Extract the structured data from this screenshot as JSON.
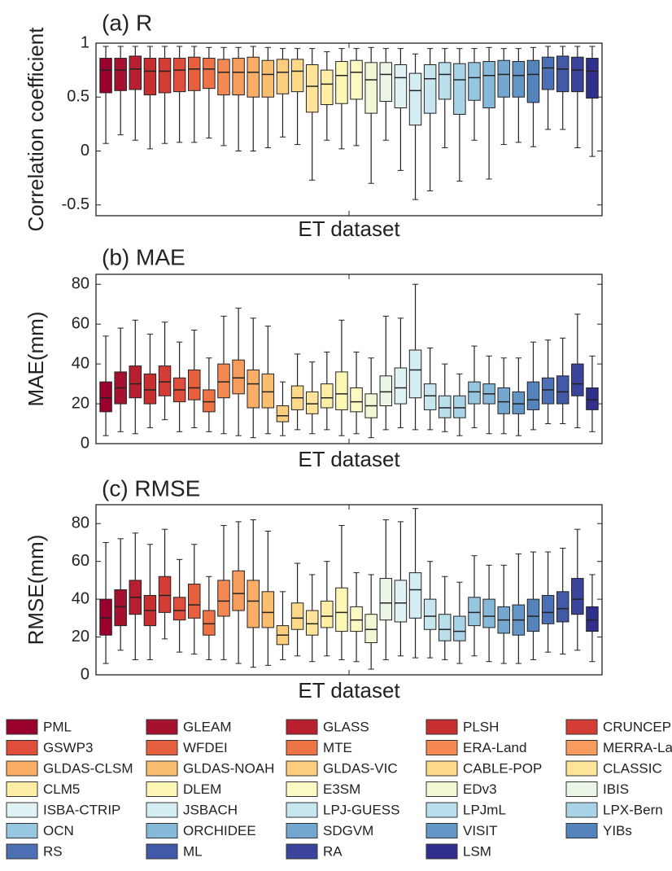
{
  "chart_data": [
    {
      "type": "box",
      "title": "(a) R",
      "y_label": "Correlation coefficient",
      "x_label": "ET dataset",
      "ylim": [
        -0.6,
        1
      ],
      "yticks": [
        -0.5,
        0,
        0.5,
        1
      ],
      "boxes": [
        [
          0.07,
          0.54,
          0.75,
          0.86,
          0.97
        ],
        [
          0.15,
          0.56,
          0.75,
          0.86,
          0.97
        ],
        [
          0.1,
          0.57,
          0.76,
          0.88,
          0.97
        ],
        [
          0.02,
          0.52,
          0.74,
          0.86,
          0.97
        ],
        [
          0.07,
          0.54,
          0.74,
          0.86,
          0.97
        ],
        [
          0.08,
          0.55,
          0.75,
          0.86,
          0.97
        ],
        [
          0.08,
          0.56,
          0.76,
          0.87,
          0.97
        ],
        [
          0.12,
          0.58,
          0.76,
          0.86,
          0.96
        ],
        [
          0.05,
          0.52,
          0.73,
          0.85,
          0.96
        ],
        [
          0.0,
          0.52,
          0.73,
          0.86,
          0.96
        ],
        [
          0.0,
          0.5,
          0.73,
          0.87,
          0.97
        ],
        [
          0.03,
          0.5,
          0.71,
          0.84,
          0.96
        ],
        [
          0.13,
          0.53,
          0.73,
          0.85,
          0.95
        ],
        [
          0.06,
          0.55,
          0.74,
          0.85,
          0.95
        ],
        [
          -0.27,
          0.36,
          0.6,
          0.8,
          0.95
        ],
        [
          0.1,
          0.43,
          0.62,
          0.75,
          0.92
        ],
        [
          0.02,
          0.44,
          0.7,
          0.83,
          0.95
        ],
        [
          0.05,
          0.48,
          0.73,
          0.84,
          0.95
        ],
        [
          -0.3,
          0.35,
          0.66,
          0.82,
          0.96
        ],
        [
          0.1,
          0.46,
          0.71,
          0.82,
          0.95
        ],
        [
          -0.18,
          0.4,
          0.68,
          0.8,
          0.95
        ],
        [
          -0.45,
          0.24,
          0.56,
          0.72,
          0.9
        ],
        [
          -0.37,
          0.35,
          0.67,
          0.8,
          0.95
        ],
        [
          0.03,
          0.48,
          0.71,
          0.82,
          0.95
        ],
        [
          -0.28,
          0.34,
          0.66,
          0.81,
          0.95
        ],
        [
          0.1,
          0.47,
          0.68,
          0.82,
          0.95
        ],
        [
          -0.26,
          0.4,
          0.7,
          0.83,
          0.96
        ],
        [
          0.06,
          0.5,
          0.71,
          0.84,
          0.95
        ],
        [
          0.08,
          0.5,
          0.7,
          0.83,
          0.95
        ],
        [
          0.04,
          0.45,
          0.71,
          0.84,
          0.96
        ],
        [
          0.2,
          0.57,
          0.77,
          0.87,
          0.97
        ],
        [
          0.2,
          0.55,
          0.76,
          0.88,
          0.97
        ],
        [
          0.03,
          0.55,
          0.75,
          0.87,
          0.97
        ],
        [
          -0.05,
          0.49,
          0.74,
          0.86,
          0.97
        ]
      ]
    },
    {
      "type": "box",
      "title": "(b) MAE",
      "y_label": "MAE(mm)",
      "x_label": "ET dataset",
      "ylim": [
        0,
        85
      ],
      "yticks": [
        0,
        20,
        40,
        60,
        80
      ],
      "boxes": [
        [
          4,
          16,
          23,
          31,
          54
        ],
        [
          6,
          20,
          28,
          36,
          58
        ],
        [
          5,
          23,
          30,
          39,
          62
        ],
        [
          8,
          20,
          27,
          35,
          55
        ],
        [
          12,
          24,
          31,
          39,
          61
        ],
        [
          6,
          21,
          27,
          33,
          51
        ],
        [
          8,
          22,
          28,
          37,
          57
        ],
        [
          6,
          16,
          21,
          27,
          43
        ],
        [
          5,
          23,
          31,
          40,
          64
        ],
        [
          4,
          25,
          33,
          42,
          68
        ],
        [
          3,
          18,
          30,
          37,
          63
        ],
        [
          5,
          18,
          26,
          35,
          59
        ],
        [
          4,
          11,
          14,
          19,
          31
        ],
        [
          7,
          17,
          23,
          29,
          45
        ],
        [
          5,
          15,
          20,
          26,
          41
        ],
        [
          7,
          18,
          23,
          30,
          46
        ],
        [
          4,
          17,
          25,
          36,
          62
        ],
        [
          5,
          16,
          21,
          28,
          46
        ],
        [
          3,
          13,
          19,
          25,
          43
        ],
        [
          7,
          19,
          26,
          34,
          64
        ],
        [
          8,
          20,
          28,
          38,
          63
        ],
        [
          7,
          23,
          37,
          47,
          80
        ],
        [
          7,
          17,
          24,
          30,
          48
        ],
        [
          6,
          13,
          18,
          24,
          40
        ],
        [
          4,
          13,
          18,
          24,
          35
        ],
        [
          8,
          20,
          26,
          31,
          49
        ],
        [
          5,
          20,
          25,
          30,
          44
        ],
        [
          5,
          15,
          21,
          28,
          43
        ],
        [
          4,
          15,
          20,
          26,
          43
        ],
        [
          7,
          17,
          22,
          31,
          51
        ],
        [
          10,
          20,
          27,
          33,
          52
        ],
        [
          10,
          20,
          26,
          34,
          53
        ],
        [
          8,
          24,
          30,
          40,
          65
        ],
        [
          6,
          17,
          22,
          28,
          44
        ]
      ]
    },
    {
      "type": "box",
      "title": "(c) RMSE",
      "y_label": "RMSE(mm)",
      "x_label": "ET dataset",
      "ylim": [
        0,
        90
      ],
      "yticks": [
        0,
        20,
        40,
        60,
        80
      ],
      "boxes": [
        [
          6,
          21,
          30,
          40,
          70
        ],
        [
          13,
          26,
          36,
          45,
          72
        ],
        [
          8,
          32,
          41,
          50,
          75
        ],
        [
          8,
          26,
          34,
          42,
          69
        ],
        [
          19,
          33,
          42,
          52,
          77
        ],
        [
          12,
          29,
          34,
          41,
          61
        ],
        [
          11,
          30,
          37,
          48,
          69
        ],
        [
          8,
          21,
          27,
          34,
          52
        ],
        [
          8,
          31,
          39,
          50,
          79
        ],
        [
          6,
          34,
          43,
          55,
          81
        ],
        [
          4,
          25,
          39,
          50,
          82
        ],
        [
          5,
          25,
          33,
          44,
          76
        ],
        [
          8,
          16,
          21,
          26,
          44
        ],
        [
          10,
          24,
          30,
          38,
          59
        ],
        [
          7,
          21,
          27,
          34,
          53
        ],
        [
          10,
          25,
          31,
          39,
          60
        ],
        [
          8,
          23,
          33,
          46,
          79
        ],
        [
          7,
          23,
          29,
          36,
          54
        ],
        [
          3,
          17,
          24,
          32,
          53
        ],
        [
          8,
          29,
          38,
          51,
          82
        ],
        [
          10,
          28,
          38,
          50,
          81
        ],
        [
          9,
          30,
          45,
          54,
          88
        ],
        [
          9,
          24,
          31,
          40,
          60
        ],
        [
          8,
          18,
          24,
          32,
          52
        ],
        [
          6,
          18,
          23,
          31,
          49
        ],
        [
          10,
          26,
          33,
          41,
          63
        ],
        [
          7,
          25,
          31,
          40,
          58
        ],
        [
          6,
          22,
          29,
          36,
          58
        ],
        [
          6,
          21,
          29,
          37,
          64
        ],
        [
          8,
          23,
          31,
          40,
          65
        ],
        [
          12,
          27,
          33,
          42,
          65
        ],
        [
          11,
          28,
          35,
          44,
          67
        ],
        [
          13,
          32,
          40,
          51,
          77
        ],
        [
          7,
          23,
          29,
          36,
          53
        ]
      ]
    }
  ],
  "legend": {
    "entries": [
      {
        "name": "PML",
        "color": "#99002b"
      },
      {
        "name": "GLEAM",
        "color": "#a6112d"
      },
      {
        "name": "GLASS",
        "color": "#b8202f"
      },
      {
        "name": "PLSH",
        "color": "#c62e30"
      },
      {
        "name": "CRUNCEP",
        "color": "#d43d35"
      },
      {
        "name": "GSWP3",
        "color": "#de4e3b"
      },
      {
        "name": "WFDEI",
        "color": "#e6603f"
      },
      {
        "name": "MTE",
        "color": "#ee7446"
      },
      {
        "name": "ERA-Land",
        "color": "#f48a52"
      },
      {
        "name": "MERRA-Land",
        "color": "#f79c5c"
      },
      {
        "name": "GLDAS-CLSM",
        "color": "#f9ad65"
      },
      {
        "name": "GLDAS-NOAH",
        "color": "#fbbe70"
      },
      {
        "name": "GLDAS-VIC",
        "color": "#fccd7c"
      },
      {
        "name": "CABLE-POP",
        "color": "#fdd98a"
      },
      {
        "name": "CLASSIC",
        "color": "#fee499"
      },
      {
        "name": "CLM5",
        "color": "#feeea6"
      },
      {
        "name": "DLEM",
        "color": "#fef6b5"
      },
      {
        "name": "E3SM",
        "color": "#fbf9c4"
      },
      {
        "name": "EDv3",
        "color": "#f3f8d4"
      },
      {
        "name": "IBIS",
        "color": "#eaf5e6"
      },
      {
        "name": "ISBA-CTRIP",
        "color": "#e0f2f3"
      },
      {
        "name": "JSBACH",
        "color": "#d4edf3"
      },
      {
        "name": "LPJ-GUESS",
        "color": "#c8e6f0"
      },
      {
        "name": "LPJmL",
        "color": "#b9dfec"
      },
      {
        "name": "LPX-Bern",
        "color": "#a9d4e7"
      },
      {
        "name": "OCN",
        "color": "#97c7e0"
      },
      {
        "name": "ORCHIDEE",
        "color": "#86b9d9"
      },
      {
        "name": "SDGVM",
        "color": "#73a7cf"
      },
      {
        "name": "VISIT",
        "color": "#6395c6"
      },
      {
        "name": "YIBs",
        "color": "#5584bd"
      },
      {
        "name": "RS",
        "color": "#4c70b3"
      },
      {
        "name": "ML",
        "color": "#4259a8"
      },
      {
        "name": "RA",
        "color": "#3a449c"
      },
      {
        "name": "LSM",
        "color": "#312f8d"
      }
    ]
  }
}
